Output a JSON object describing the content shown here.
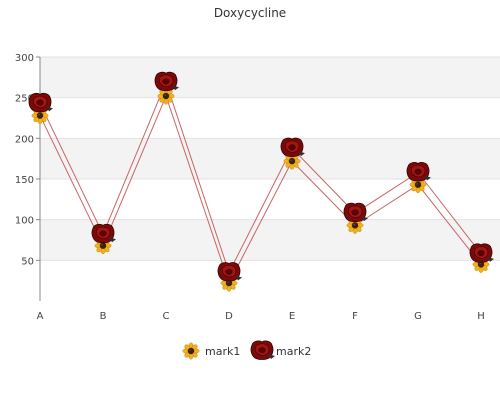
{
  "chart_data": {
    "type": "line",
    "title": "Doxycycline",
    "categories": [
      "A",
      "B",
      "C",
      "D",
      "E",
      "F",
      "G",
      "H"
    ],
    "ylim": [
      0,
      300
    ],
    "yticks": [
      50,
      100,
      150,
      200,
      250,
      300
    ],
    "grid": true,
    "legend_position": "bottom",
    "series": [
      {
        "name": "mark1",
        "values": [
          228,
          68,
          252,
          22,
          172,
          93,
          143,
          45
        ],
        "marker": "sunflower-icon",
        "color": "#e3a21a"
      },
      {
        "name": "mark2",
        "values": [
          243,
          82,
          269,
          35,
          188,
          108,
          158,
          58
        ],
        "marker": "rose-icon",
        "color": "#8b0000"
      }
    ],
    "line_color": "#c86464",
    "band_color": "#f3f3f3"
  }
}
